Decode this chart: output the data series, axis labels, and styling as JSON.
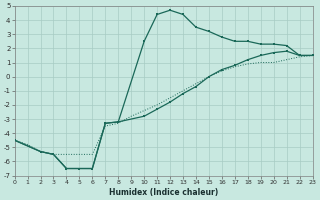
{
  "xlabel": "Humidex (Indice chaleur)",
  "bg_color": "#c8e8e0",
  "grid_color": "#a8ccc4",
  "line_color": "#1a6858",
  "xlim": [
    0,
    23
  ],
  "ylim": [
    -7,
    5
  ],
  "xtick_vals": [
    0,
    1,
    2,
    3,
    4,
    5,
    6,
    7,
    8,
    9,
    10,
    11,
    12,
    13,
    14,
    15,
    16,
    17,
    18,
    19,
    20,
    21,
    22,
    23
  ],
  "ytick_vals": [
    -7,
    -6,
    -5,
    -4,
    -3,
    -2,
    -1,
    0,
    1,
    2,
    3,
    4,
    5
  ],
  "line_dotted_x": [
    0,
    1,
    2,
    3,
    4,
    5,
    6,
    7,
    8,
    9,
    10,
    11,
    12,
    13,
    14,
    15,
    16,
    17,
    18,
    19,
    20,
    21,
    22,
    23
  ],
  "line_dotted_y": [
    -4.5,
    -4.8,
    -5.3,
    -5.5,
    -5.5,
    -5.5,
    -5.5,
    -3.5,
    -3.3,
    -2.8,
    -2.4,
    -2.0,
    -1.5,
    -1.0,
    -0.5,
    0.0,
    0.4,
    0.7,
    0.9,
    1.0,
    1.0,
    1.2,
    1.4,
    1.5
  ],
  "line_upper_x": [
    0,
    2,
    3,
    4,
    5,
    6,
    7,
    8,
    10,
    11,
    12,
    13,
    14,
    15,
    16,
    17,
    18,
    19,
    20,
    21,
    22,
    23
  ],
  "line_upper_y": [
    -4.5,
    -5.3,
    -5.5,
    -6.5,
    -6.5,
    -6.5,
    -3.3,
    -3.2,
    2.5,
    4.4,
    4.7,
    4.4,
    3.5,
    3.2,
    2.8,
    2.5,
    2.5,
    2.3,
    2.3,
    2.2,
    1.5,
    1.5
  ],
  "line_lower_x": [
    0,
    2,
    3,
    4,
    5,
    6,
    7,
    8,
    10,
    11,
    12,
    13,
    14,
    15,
    16,
    17,
    18,
    19,
    20,
    21,
    22,
    23
  ],
  "line_lower_y": [
    -4.5,
    -5.3,
    -5.5,
    -6.5,
    -6.5,
    -6.5,
    -3.3,
    -3.2,
    -2.8,
    -2.3,
    -1.8,
    -1.2,
    -0.7,
    0.0,
    0.5,
    0.8,
    1.2,
    1.5,
    1.7,
    1.8,
    1.5,
    1.5
  ]
}
